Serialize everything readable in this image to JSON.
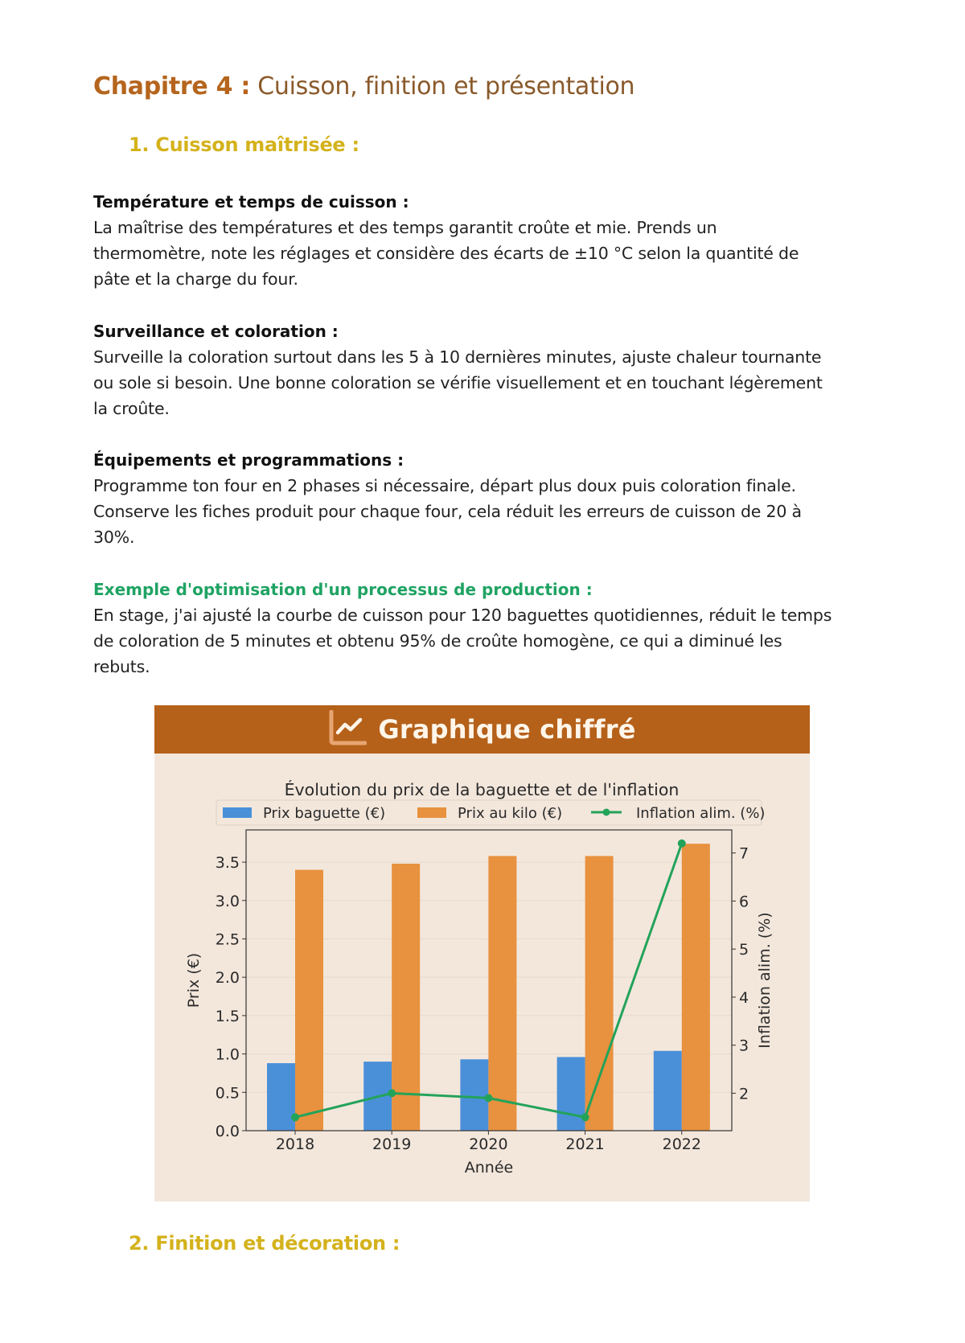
{
  "chapter": {
    "prefix": "Chapitre 4 :",
    "title": " Cuisson, finition et présentation"
  },
  "section1": {
    "title": "1.  Cuisson maîtrisée :"
  },
  "blocks": [
    {
      "title": "Température et temps de cuisson :",
      "lines": [
        "La maîtrise des températures et des temps garantit croûte et mie. Prends un",
        "thermomètre, note les réglages et considère des écarts de ±10 °C selon la quantité de",
        "pâte et la charge du four."
      ]
    },
    {
      "title": "Surveillance et coloration :",
      "lines": [
        "Surveille la coloration surtout dans les 5 à 10 dernières minutes, ajuste chaleur tournante",
        "ou sole si besoin. Une bonne coloration se vérifie visuellement et en touchant légèrement",
        "la croûte."
      ]
    },
    {
      "title": "Équipements et programmations :",
      "lines": [
        "Programme ton four en 2 phases si nécessaire, départ plus doux puis coloration finale.",
        "Conserve les fiches produit pour chaque four, cela réduit les erreurs de cuisson de 20 à",
        "30%."
      ]
    },
    {
      "title": "Exemple d'optimisation d'un processus de production :",
      "lines": [
        "En stage, j'ai ajusté la courbe de cuisson pour 120 baguettes quotidiennes, réduit le temps",
        "de coloration de 5 minutes et obtenu 95% de croûte homogène, ce qui a diminué les",
        "rebuts."
      ]
    }
  ],
  "chart_header": {
    "label": "Graphique chiffré",
    "icon": "line-chart-icon"
  },
  "chart_data": {
    "type": "bar",
    "title": "Évolution du prix de la baguette et de l'inflation",
    "xlabel": "Année",
    "ylabel": "Prix (€)",
    "y2label": "Inflation alim. (%)",
    "categories": [
      "2018",
      "2019",
      "2020",
      "2021",
      "2022"
    ],
    "series": [
      {
        "name": "Prix baguette (€)",
        "type": "bar",
        "axis": "left",
        "color": "#4a90d9",
        "values": [
          0.88,
          0.9,
          0.93,
          0.96,
          1.04
        ]
      },
      {
        "name": "Prix au kilo (€)",
        "type": "bar",
        "axis": "left",
        "color": "#e8913e",
        "values": [
          3.4,
          3.48,
          3.58,
          3.58,
          3.74
        ]
      },
      {
        "name": "Inflation alim. (%)",
        "type": "line",
        "axis": "right",
        "color": "#23a35a",
        "values": [
          1.5,
          2.0,
          1.9,
          1.5,
          7.2
        ]
      }
    ],
    "ylim": [
      0,
      3.92
    ],
    "y2lim": [
      1.22,
      7.48
    ],
    "yticks": [
      "0.0",
      "0.5",
      "1.0",
      "1.5",
      "2.0",
      "2.5",
      "3.0",
      "3.5"
    ],
    "y2ticks": [
      "2",
      "3",
      "4",
      "5",
      "6",
      "7"
    ],
    "grid": true,
    "legend": "top"
  },
  "section2": {
    "title": "2.  Finition et décoration :"
  }
}
